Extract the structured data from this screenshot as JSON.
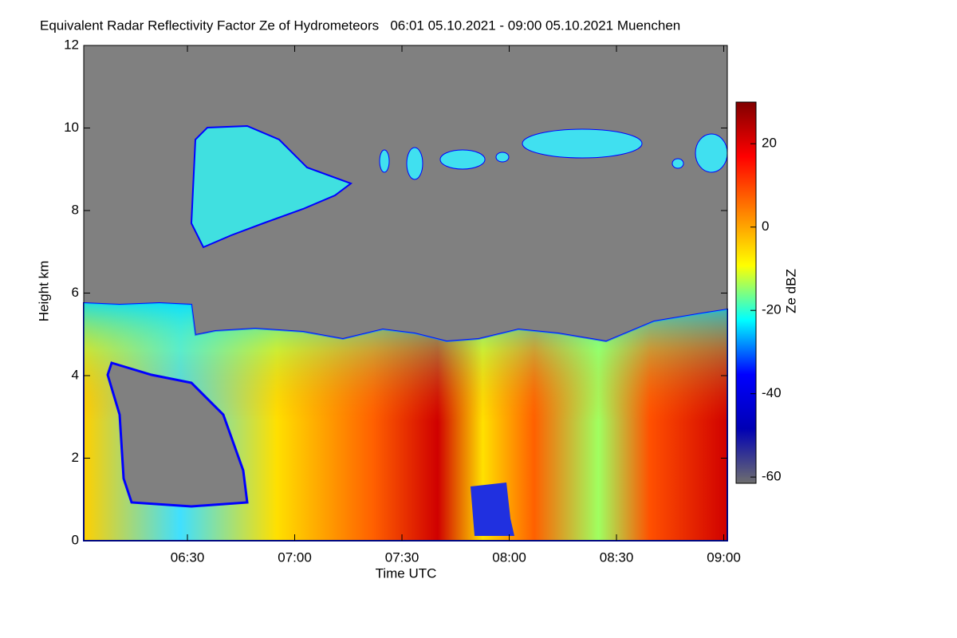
{
  "chart_data": {
    "type": "heatmap",
    "title": "Equivalent Radar Reflectivity Factor Ze of Hydrometeors   06:01 05.10.2021 - 09:00 05.10.2021 Muenchen",
    "x_label": "Time UTC",
    "y_label": "Height km",
    "colorbar_label": "Ze dBZ",
    "xlim": [
      361,
      541
    ],
    "xticks": [
      {
        "value": 390,
        "label": "06:30"
      },
      {
        "value": 420,
        "label": "07:00"
      },
      {
        "value": 450,
        "label": "07:30"
      },
      {
        "value": 480,
        "label": "08:00"
      },
      {
        "value": 510,
        "label": "08:30"
      },
      {
        "value": 540,
        "label": "09:00"
      }
    ],
    "ylim": [
      0,
      12
    ],
    "yticks": [
      0,
      2,
      4,
      6,
      8,
      10,
      12
    ],
    "clim": [
      -61.5,
      30
    ],
    "cticks": [
      -60,
      -40,
      -20,
      0,
      20
    ],
    "colormap": [
      "#6e6e6e",
      "#0000b4",
      "#0000ff",
      "#00ffff",
      "#ffff00",
      "#ff8000",
      "#ff0000",
      "#800000"
    ]
  }
}
